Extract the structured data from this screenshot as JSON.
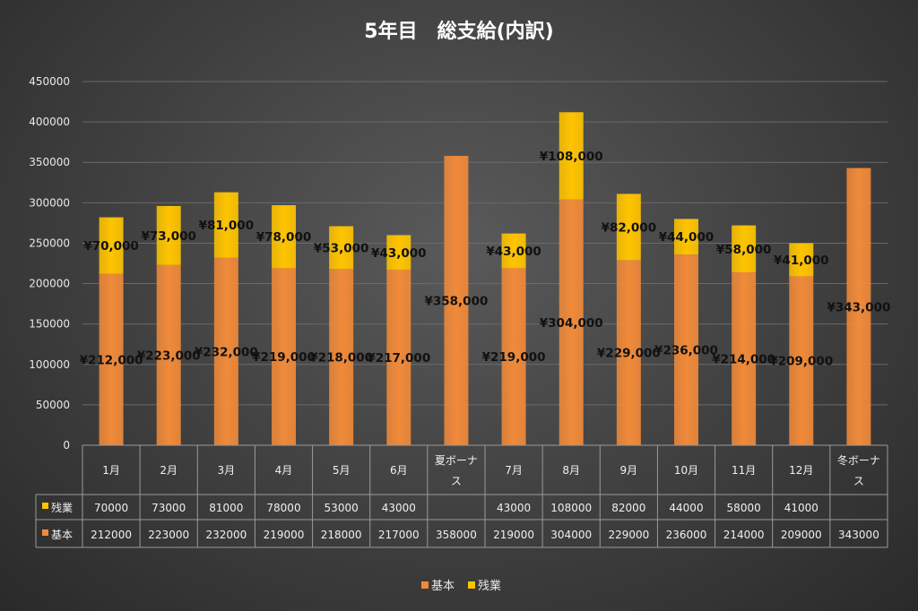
{
  "chart_data": {
    "type": "bar",
    "stacked": true,
    "title": "5年目　総支給(内訳)",
    "categories": [
      "1月",
      "2月",
      "3月",
      "4月",
      "5月",
      "6月",
      "夏ボーナス",
      "7月",
      "8月",
      "9月",
      "10月",
      "11月",
      "12月",
      "冬ボーナス"
    ],
    "series": [
      {
        "name": "基本",
        "color": "#f08a3a",
        "values": [
          212000,
          223000,
          232000,
          219000,
          218000,
          217000,
          358000,
          219000,
          304000,
          229000,
          236000,
          214000,
          209000,
          343000
        ],
        "labels": [
          "¥212,000",
          "¥223,000",
          "¥232,000",
          "¥219,000",
          "¥218,000",
          "¥217,000",
          "¥358,000",
          "¥219,000",
          "¥304,000",
          "¥229,000",
          "¥236,000",
          "¥214,000",
          "¥209,000",
          "¥343,000"
        ],
        "table": [
          "212000",
          "223000",
          "232000",
          "219000",
          "218000",
          "217000",
          "358000",
          "219000",
          "304000",
          "229000",
          "236000",
          "214000",
          "209000",
          "343000"
        ]
      },
      {
        "name": "残業",
        "color": "#ffc400",
        "values": [
          70000,
          73000,
          81000,
          78000,
          53000,
          43000,
          null,
          43000,
          108000,
          82000,
          44000,
          58000,
          41000,
          null
        ],
        "labels": [
          "¥70,000",
          "¥73,000",
          "¥81,000",
          "¥78,000",
          "¥53,000",
          "¥43,000",
          "",
          "¥43,000",
          "¥108,000",
          "¥82,000",
          "¥44,000",
          "¥58,000",
          "¥41,000",
          ""
        ],
        "table": [
          "70000",
          "73000",
          "81000",
          "78000",
          "53000",
          "43000",
          "",
          "43000",
          "108000",
          "82000",
          "44000",
          "58000",
          "41000",
          ""
        ]
      }
    ],
    "yticks": [
      "0",
      "50000",
      "100000",
      "150000",
      "200000",
      "250000",
      "300000",
      "350000",
      "400000",
      "450000"
    ],
    "ylim": [
      0,
      450000
    ],
    "legend_position": "bottom",
    "table_position": "below-axis"
  }
}
